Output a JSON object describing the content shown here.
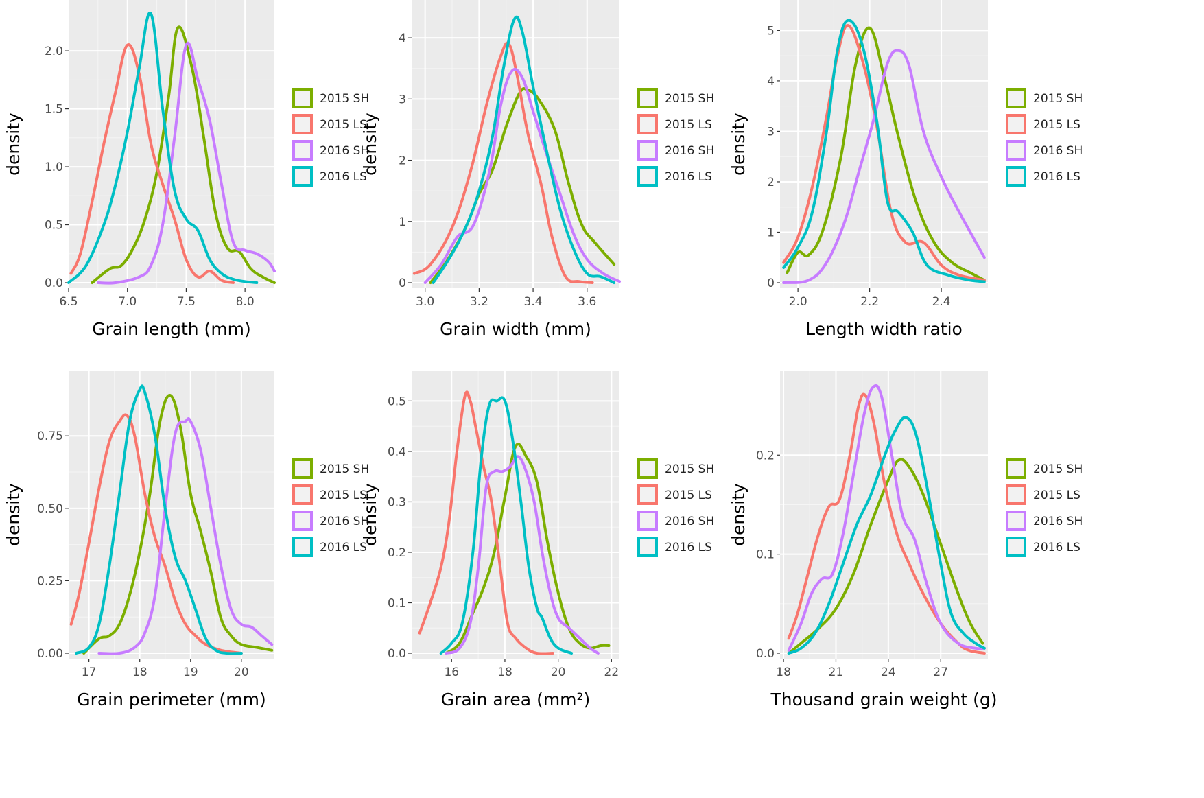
{
  "figure": {
    "panel_count": 6
  },
  "legend": [
    {
      "name": "2015 SH",
      "color": "#7CAE00"
    },
    {
      "name": "2015 LS",
      "color": "#F8766D"
    },
    {
      "name": "2016 SH",
      "color": "#C77CFF"
    },
    {
      "name": "2016 LS",
      "color": "#00BFC4"
    }
  ],
  "chart_data": [
    {
      "type": "line",
      "xlabel": "Grain length (mm)",
      "ylabel": "density",
      "xlim": [
        6.5,
        8.25
      ],
      "ylim": [
        0,
        2.35
      ],
      "xticks": [
        6.5,
        7.0,
        7.5,
        8.0
      ],
      "xtick_labels": [
        "6.5",
        "7.0",
        "7.5",
        "8.0"
      ],
      "yticks": [
        0,
        0.5,
        1.0,
        1.5,
        2.0
      ],
      "ytick_labels": [
        "0.0",
        "0.5",
        "1.0",
        "1.5",
        "2.0"
      ],
      "series": [
        {
          "name": "2015 SH",
          "x": [
            6.7,
            6.85,
            6.95,
            7.05,
            7.15,
            7.25,
            7.35,
            7.43,
            7.55,
            7.65,
            7.75,
            7.85,
            7.95,
            8.05,
            8.15,
            8.25
          ],
          "y": [
            0.0,
            0.12,
            0.15,
            0.3,
            0.55,
            0.95,
            1.6,
            2.2,
            1.85,
            1.25,
            0.6,
            0.3,
            0.27,
            0.12,
            0.05,
            0.0
          ]
        },
        {
          "name": "2015 LS",
          "x": [
            6.52,
            6.6,
            6.7,
            6.8,
            6.9,
            7.0,
            7.1,
            7.2,
            7.3,
            7.4,
            7.5,
            7.6,
            7.7,
            7.8,
            7.9
          ],
          "y": [
            0.08,
            0.25,
            0.7,
            1.2,
            1.65,
            2.05,
            1.8,
            1.2,
            0.85,
            0.55,
            0.2,
            0.05,
            0.1,
            0.02,
            0.0
          ]
        },
        {
          "name": "2016 SH",
          "x": [
            6.75,
            6.9,
            7.1,
            7.2,
            7.3,
            7.4,
            7.5,
            7.6,
            7.7,
            7.8,
            7.9,
            8.0,
            8.1,
            8.2,
            8.25
          ],
          "y": [
            0.0,
            0.0,
            0.05,
            0.15,
            0.5,
            1.25,
            2.05,
            1.75,
            1.4,
            0.85,
            0.35,
            0.28,
            0.25,
            0.18,
            0.1
          ]
        },
        {
          "name": "2016 LS",
          "x": [
            6.5,
            6.65,
            6.8,
            6.9,
            7.0,
            7.1,
            7.2,
            7.3,
            7.4,
            7.5,
            7.6,
            7.7,
            7.8,
            7.9,
            8.0,
            8.1
          ],
          "y": [
            0.0,
            0.15,
            0.5,
            0.85,
            1.3,
            1.85,
            2.32,
            1.5,
            0.8,
            0.55,
            0.45,
            0.2,
            0.08,
            0.03,
            0.01,
            0.0
          ]
        }
      ]
    },
    {
      "type": "line",
      "xlabel": "Grain width (mm)",
      "ylabel": "density",
      "xlim": [
        2.95,
        3.72
      ],
      "ylim": [
        0,
        4.45
      ],
      "xticks": [
        3.0,
        3.2,
        3.4,
        3.6
      ],
      "xtick_labels": [
        "3.0",
        "3.2",
        "3.4",
        "3.6"
      ],
      "yticks": [
        0,
        1,
        2,
        3,
        4
      ],
      "ytick_labels": [
        "0",
        "1",
        "2",
        "3",
        "4"
      ],
      "series": [
        {
          "name": "2015 SH",
          "x": [
            3.02,
            3.08,
            3.15,
            3.2,
            3.25,
            3.3,
            3.35,
            3.38,
            3.42,
            3.48,
            3.53,
            3.58,
            3.63,
            3.7
          ],
          "y": [
            0.0,
            0.35,
            0.9,
            1.45,
            1.85,
            2.55,
            3.1,
            3.15,
            3.0,
            2.5,
            1.65,
            0.95,
            0.65,
            0.3
          ]
        },
        {
          "name": "2015 LS",
          "x": [
            2.96,
            3.02,
            3.1,
            3.17,
            3.23,
            3.28,
            3.31,
            3.34,
            3.38,
            3.43,
            3.47,
            3.52,
            3.57,
            3.62
          ],
          "y": [
            0.15,
            0.3,
            0.9,
            1.85,
            2.95,
            3.7,
            3.9,
            3.4,
            2.45,
            1.6,
            0.75,
            0.1,
            0.02,
            0.0
          ]
        },
        {
          "name": "2016 SH",
          "x": [
            3.0,
            3.06,
            3.12,
            3.18,
            3.24,
            3.28,
            3.32,
            3.36,
            3.4,
            3.45,
            3.5,
            3.55,
            3.6,
            3.66,
            3.72
          ],
          "y": [
            0.0,
            0.3,
            0.75,
            0.95,
            1.85,
            2.9,
            3.45,
            3.35,
            2.8,
            2.1,
            1.45,
            0.8,
            0.38,
            0.15,
            0.02
          ]
        },
        {
          "name": "2016 LS",
          "x": [
            3.03,
            3.09,
            3.15,
            3.2,
            3.25,
            3.29,
            3.33,
            3.36,
            3.4,
            3.45,
            3.5,
            3.55,
            3.6,
            3.65,
            3.7
          ],
          "y": [
            0.0,
            0.4,
            0.9,
            1.5,
            2.4,
            3.5,
            4.3,
            4.1,
            3.2,
            2.15,
            1.2,
            0.55,
            0.15,
            0.1,
            0.0
          ]
        }
      ]
    },
    {
      "type": "line",
      "xlabel": "Length width ratio",
      "ylabel": "density",
      "xlim": [
        1.95,
        2.53
      ],
      "ylim": [
        0,
        5.4
      ],
      "xticks": [
        2.0,
        2.2,
        2.4
      ],
      "xtick_labels": [
        "2.0",
        "2.2",
        "2.4"
      ],
      "yticks": [
        0,
        1,
        2,
        3,
        4,
        5
      ],
      "ytick_labels": [
        "0",
        "1",
        "2",
        "3",
        "4",
        "5"
      ],
      "series": [
        {
          "name": "2015 SH",
          "x": [
            1.97,
            2.0,
            2.03,
            2.07,
            2.12,
            2.16,
            2.2,
            2.24,
            2.28,
            2.33,
            2.38,
            2.43,
            2.48,
            2.52
          ],
          "y": [
            0.2,
            0.6,
            0.55,
            1.05,
            2.5,
            4.3,
            5.05,
            4.1,
            2.9,
            1.6,
            0.8,
            0.4,
            0.2,
            0.05
          ]
        },
        {
          "name": "2015 LS",
          "x": [
            1.96,
            2.0,
            2.04,
            2.08,
            2.11,
            2.14,
            2.18,
            2.22,
            2.26,
            2.3,
            2.35,
            2.4,
            2.45,
            2.52
          ],
          "y": [
            0.4,
            0.9,
            1.9,
            3.3,
            4.5,
            5.1,
            4.4,
            3.1,
            1.4,
            0.8,
            0.8,
            0.35,
            0.15,
            0.05
          ]
        },
        {
          "name": "2016 SH",
          "x": [
            1.96,
            2.03,
            2.08,
            2.13,
            2.17,
            2.21,
            2.25,
            2.28,
            2.31,
            2.35,
            2.4,
            2.45,
            2.52
          ],
          "y": [
            0.0,
            0.05,
            0.4,
            1.2,
            2.2,
            3.2,
            4.35,
            4.6,
            4.3,
            3.0,
            2.1,
            1.4,
            0.5
          ]
        },
        {
          "name": "2016 LS",
          "x": [
            1.96,
            2.0,
            2.04,
            2.08,
            2.11,
            2.14,
            2.18,
            2.22,
            2.25,
            2.28,
            2.32,
            2.36,
            2.42,
            2.48,
            2.52
          ],
          "y": [
            0.3,
            0.7,
            1.4,
            3.0,
            4.6,
            5.2,
            4.7,
            3.2,
            1.6,
            1.4,
            1.0,
            0.35,
            0.15,
            0.05,
            0.02
          ]
        }
      ]
    },
    {
      "type": "line",
      "xlabel": "Grain perimeter (mm)",
      "ylabel": "density",
      "xlim": [
        16.6,
        20.65
      ],
      "ylim": [
        0,
        0.94
      ],
      "xticks": [
        17,
        18,
        19,
        20
      ],
      "xtick_labels": [
        "17",
        "18",
        "19",
        "20"
      ],
      "yticks": [
        0,
        0.25,
        0.5,
        0.75
      ],
      "ytick_labels": [
        "0.00",
        "0.25",
        "0.50",
        "0.75"
      ],
      "series": [
        {
          "name": "2015 SH",
          "x": [
            16.9,
            17.2,
            17.4,
            17.6,
            17.8,
            18.0,
            18.2,
            18.4,
            18.6,
            18.8,
            19.0,
            19.2,
            19.4,
            19.6,
            19.8,
            20.0,
            20.3,
            20.6
          ],
          "y": [
            0.0,
            0.05,
            0.06,
            0.1,
            0.2,
            0.35,
            0.55,
            0.8,
            0.89,
            0.78,
            0.55,
            0.42,
            0.28,
            0.12,
            0.06,
            0.03,
            0.02,
            0.01
          ]
        },
        {
          "name": "2015 LS",
          "x": [
            16.65,
            16.8,
            17.0,
            17.2,
            17.4,
            17.6,
            17.75,
            17.9,
            18.1,
            18.3,
            18.5,
            18.7,
            18.9,
            19.1,
            19.3,
            19.6,
            20.0
          ],
          "y": [
            0.1,
            0.2,
            0.38,
            0.57,
            0.73,
            0.8,
            0.82,
            0.75,
            0.55,
            0.4,
            0.3,
            0.18,
            0.1,
            0.06,
            0.03,
            0.01,
            0.0
          ]
        },
        {
          "name": "2016 SH",
          "x": [
            17.2,
            17.6,
            17.9,
            18.1,
            18.3,
            18.5,
            18.7,
            18.9,
            19.0,
            19.2,
            19.4,
            19.6,
            19.8,
            20.0,
            20.2,
            20.4,
            20.6
          ],
          "y": [
            0.0,
            0.0,
            0.02,
            0.07,
            0.2,
            0.5,
            0.76,
            0.8,
            0.8,
            0.7,
            0.5,
            0.3,
            0.15,
            0.1,
            0.09,
            0.06,
            0.03
          ]
        },
        {
          "name": "2016 LS",
          "x": [
            16.75,
            17.0,
            17.2,
            17.4,
            17.6,
            17.8,
            18.0,
            18.1,
            18.3,
            18.5,
            18.7,
            18.9,
            19.1,
            19.3,
            19.5,
            19.7,
            20.0
          ],
          "y": [
            0.0,
            0.02,
            0.1,
            0.3,
            0.55,
            0.8,
            0.91,
            0.9,
            0.75,
            0.5,
            0.33,
            0.25,
            0.15,
            0.05,
            0.01,
            0.0,
            0.0
          ]
        }
      ]
    },
    {
      "type": "line",
      "xlabel": "Grain area (mm²)",
      "ylabel": "density",
      "xlim": [
        14.5,
        22.3
      ],
      "ylim": [
        0,
        0.54
      ],
      "xticks": [
        16,
        18,
        20,
        22
      ],
      "xtick_labels": [
        "16",
        "18",
        "20",
        "22"
      ],
      "yticks": [
        0,
        0.1,
        0.2,
        0.3,
        0.4,
        0.5
      ],
      "ytick_labels": [
        "0.0",
        "0.1",
        "0.2",
        "0.3",
        "0.4",
        "0.5"
      ],
      "series": [
        {
          "name": "2015 SH",
          "x": [
            15.8,
            16.3,
            16.8,
            17.2,
            17.6,
            18.0,
            18.4,
            18.8,
            19.2,
            19.6,
            20.0,
            20.4,
            20.8,
            21.2,
            21.6,
            21.9
          ],
          "y": [
            0.0,
            0.02,
            0.08,
            0.13,
            0.2,
            0.31,
            0.41,
            0.39,
            0.34,
            0.22,
            0.12,
            0.05,
            0.02,
            0.01,
            0.015,
            0.015
          ]
        },
        {
          "name": "2015 LS",
          "x": [
            14.8,
            15.2,
            15.6,
            15.9,
            16.2,
            16.5,
            16.7,
            16.9,
            17.2,
            17.5,
            17.8,
            18.1,
            18.4,
            18.8,
            19.2,
            19.8
          ],
          "y": [
            0.04,
            0.1,
            0.17,
            0.26,
            0.4,
            0.51,
            0.5,
            0.45,
            0.37,
            0.3,
            0.18,
            0.06,
            0.03,
            0.01,
            0.0,
            0.0
          ]
        },
        {
          "name": "2016 SH",
          "x": [
            15.8,
            16.3,
            16.7,
            17.0,
            17.3,
            17.6,
            17.9,
            18.2,
            18.5,
            18.8,
            19.1,
            19.4,
            19.7,
            20.0,
            20.4,
            20.8,
            21.2,
            21.5
          ],
          "y": [
            0.0,
            0.01,
            0.06,
            0.17,
            0.33,
            0.36,
            0.36,
            0.37,
            0.39,
            0.36,
            0.3,
            0.2,
            0.12,
            0.07,
            0.05,
            0.03,
            0.01,
            0.0
          ]
        },
        {
          "name": "2016 LS",
          "x": [
            15.6,
            16.0,
            16.4,
            16.8,
            17.1,
            17.4,
            17.7,
            18.0,
            18.3,
            18.6,
            18.9,
            19.2,
            19.4,
            19.7,
            20.0,
            20.5
          ],
          "y": [
            0.0,
            0.02,
            0.06,
            0.2,
            0.38,
            0.49,
            0.5,
            0.5,
            0.42,
            0.3,
            0.17,
            0.09,
            0.07,
            0.03,
            0.01,
            0.0
          ]
        }
      ]
    },
    {
      "type": "line",
      "xlabel": "Thousand grain weight (g)",
      "ylabel": "density",
      "xlim": [
        17.8,
        29.7
      ],
      "ylim": [
        0,
        0.275
      ],
      "xticks": [
        18,
        21,
        24,
        27
      ],
      "xtick_labels": [
        "18",
        "21",
        "24",
        "27"
      ],
      "yticks": [
        0,
        0.1,
        0.2
      ],
      "ytick_labels": [
        "0.0",
        "0.1",
        "0.2"
      ],
      "series": [
        {
          "name": "2015 SH",
          "x": [
            18.3,
            19.0,
            20.0,
            21.0,
            22.0,
            23.0,
            24.0,
            24.6,
            25.2,
            26.0,
            27.0,
            28.0,
            28.7,
            29.4
          ],
          "y": [
            0.0,
            0.01,
            0.025,
            0.045,
            0.08,
            0.13,
            0.175,
            0.195,
            0.188,
            0.16,
            0.11,
            0.06,
            0.03,
            0.01
          ]
        },
        {
          "name": "2015 LS",
          "x": [
            18.3,
            18.8,
            19.4,
            20.0,
            20.6,
            21.2,
            21.8,
            22.3,
            22.7,
            23.2,
            23.8,
            24.5,
            25.2,
            26.0,
            27.0,
            28.0,
            28.6,
            29.5
          ],
          "y": [
            0.015,
            0.04,
            0.08,
            0.12,
            0.148,
            0.155,
            0.2,
            0.25,
            0.26,
            0.23,
            0.17,
            0.12,
            0.09,
            0.06,
            0.03,
            0.01,
            0.003,
            0.0
          ]
        },
        {
          "name": "2016 SH",
          "x": [
            18.3,
            19.0,
            19.6,
            20.2,
            20.8,
            21.4,
            22.0,
            22.6,
            23.1,
            23.6,
            24.2,
            24.8,
            25.5,
            26.2,
            27.0,
            28.0,
            29.0,
            29.5
          ],
          "y": [
            0.003,
            0.03,
            0.06,
            0.075,
            0.08,
            0.12,
            0.18,
            0.24,
            0.268,
            0.26,
            0.2,
            0.14,
            0.115,
            0.07,
            0.03,
            0.01,
            0.005,
            0.005
          ]
        },
        {
          "name": "2016 LS",
          "x": [
            18.3,
            19.0,
            19.8,
            20.6,
            21.4,
            22.2,
            23.0,
            23.8,
            24.4,
            25.0,
            25.6,
            26.3,
            27.0,
            27.6,
            28.3,
            29.0,
            29.5
          ],
          "y": [
            0.0,
            0.005,
            0.02,
            0.05,
            0.09,
            0.13,
            0.16,
            0.2,
            0.225,
            0.238,
            0.22,
            0.16,
            0.09,
            0.04,
            0.02,
            0.01,
            0.005
          ]
        }
      ]
    }
  ]
}
